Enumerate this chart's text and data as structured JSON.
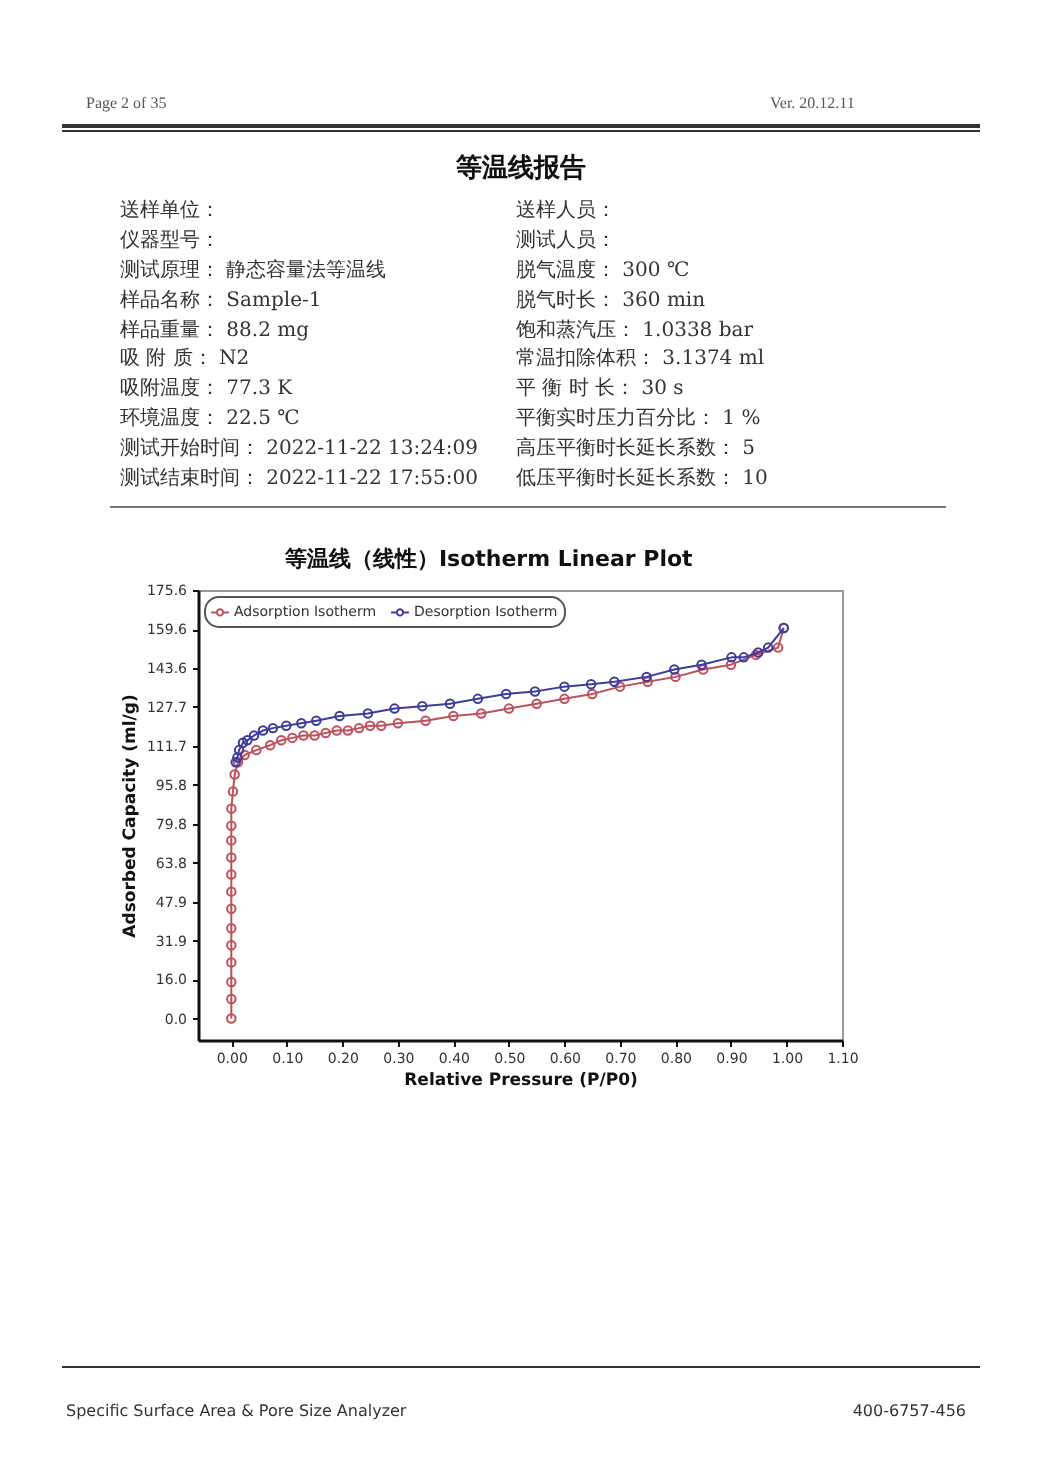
{
  "chart_data": {
    "type": "line",
    "title": "等温线（线性）Isotherm Linear Plot",
    "xlabel": "Relative Pressure (P/P0)",
    "ylabel": "Adsorbed Capacity (ml/g)",
    "annotations": [
      "Page 2 of 35",
      "Ver. 20.12.11",
      "等温线报告",
      "送样单位：",
      "送样人员：",
      "仪器型号：",
      "测试人员：",
      "测试原理： 静态容量法等温线",
      "脱气温度： 300 ℃",
      "样品名称： Sample-1",
      "脱气时长： 360 min",
      "样品重量： 88.2 mg",
      "饱和蒸汽压： 1.0338 bar",
      "吸 附 质： N2",
      "常温扣除体积： 3.1374 ml",
      "吸附温度： 77.3 K",
      "平 衡 时 长： 30 s",
      "环境温度： 22.5 ℃",
      "平衡实时压力百分比： 1 %",
      "测试开始时间： 2022-11-22 13:24:09",
      "高压平衡时长延长系数： 5",
      "测试结束时间： 2022-11-22 17:55:00",
      "低压平衡时长延长系数： 10",
      "Specific Surface Area & Pore Size Analyzer",
      "400-6757-456"
    ],
    "series": [
      {
        "name": "Adsorption Isotherm",
        "color": "#c0505c",
        "x": [
          0,
          0,
          0,
          0,
          0,
          0,
          0,
          0,
          0,
          0,
          0,
          0,
          0,
          0.003,
          0.006,
          0.012,
          0.024,
          0.045,
          0.07,
          0.09,
          0.11,
          0.13,
          0.15,
          0.17,
          0.19,
          0.21,
          0.23,
          0.25,
          0.27,
          0.3,
          0.35,
          0.4,
          0.45,
          0.5,
          0.55,
          0.6,
          0.65,
          0.7,
          0.75,
          0.8,
          0.85,
          0.9,
          0.945,
          0.985,
          0.995
        ],
        "values": [
          0,
          8,
          15,
          23,
          30,
          37,
          45,
          52,
          59,
          66,
          73,
          79,
          86,
          93,
          100,
          105,
          108,
          110,
          112,
          114,
          115,
          116,
          116,
          117,
          118,
          118,
          119,
          120,
          120,
          121,
          122,
          124,
          125,
          127,
          129,
          131,
          133,
          136,
          138,
          140,
          143,
          145,
          149,
          152,
          160
        ]
      },
      {
        "name": "Desorption Isotherm",
        "color": "#3c3c9c",
        "x": [
          0.995,
          0.967,
          0.949,
          0.923,
          0.901,
          0.847,
          0.798,
          0.748,
          0.69,
          0.648,
          0.6,
          0.547,
          0.495,
          0.444,
          0.394,
          0.344,
          0.294,
          0.246,
          0.195,
          0.153,
          0.126,
          0.099,
          0.075,
          0.057,
          0.041,
          0.029,
          0.021,
          0.014,
          0.011,
          0.008
        ],
        "values": [
          160,
          152,
          150,
          148,
          148,
          145,
          143,
          140,
          138,
          137,
          136,
          134,
          133,
          131,
          129,
          128,
          127,
          125,
          124,
          122,
          121,
          120,
          119,
          118,
          116,
          114,
          113,
          110,
          107,
          105
        ]
      }
    ],
    "xlim": [
      -0.06,
      1.1
    ],
    "ylim": [
      -8.8,
      175.6
    ],
    "xticks": [
      {
        "value": 0,
        "label": "0.00"
      },
      {
        "value": 0.1,
        "label": "0.10"
      },
      {
        "value": 0.2,
        "label": "0.20"
      },
      {
        "value": 0.3,
        "label": "0.30"
      },
      {
        "value": 0.4,
        "label": "0.40"
      },
      {
        "value": 0.5,
        "label": "0.50"
      },
      {
        "value": 0.6,
        "label": "0.60"
      },
      {
        "value": 0.7,
        "label": "0.70"
      },
      {
        "value": 0.8,
        "label": "0.80"
      },
      {
        "value": 0.9,
        "label": "0.90"
      },
      {
        "value": 1.0,
        "label": "1.00"
      },
      {
        "value": 1.1,
        "label": "1.10"
      }
    ],
    "yticks": [
      {
        "value": 0,
        "label": "0.0"
      },
      {
        "value": 16,
        "label": "16.0"
      },
      31.9,
      47.9,
      63.8,
      79.8,
      95.8,
      111.7,
      127.7,
      143.6,
      159.6,
      175.6
    ],
    "marker": "circle",
    "legend": "top left"
  }
}
